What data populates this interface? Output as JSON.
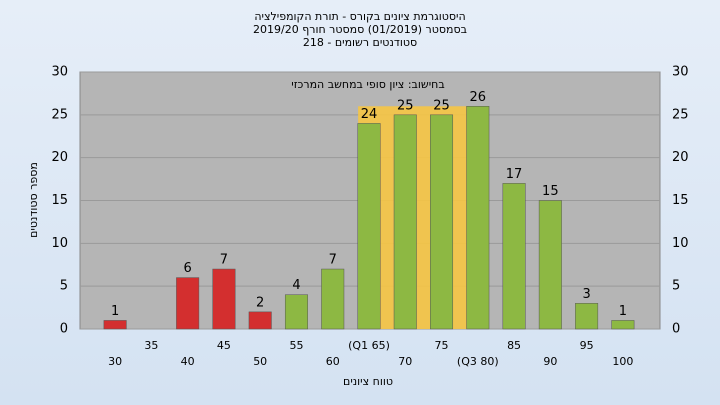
{
  "chart_data": {
    "type": "bar",
    "title": [
      "היסטוגרמת ציונים בקורס - תורת הקומפילציה",
      "בסמסטר  (01/2019)  סמסטר חורף 2019/20",
      "סטודנטים רשומים - 218"
    ],
    "subtitle": "בחישוב: ציון סופי במחשב המרכזי",
    "x_label": "טווח ציונים",
    "y_label": "מספר סטודנטים",
    "categories": [
      "30",
      "35",
      "40",
      "45",
      "50",
      "55",
      "60",
      "(Q1 65)",
      "70",
      "75",
      "(Q3 80)",
      "85",
      "90",
      "95",
      "100"
    ],
    "values": [
      1,
      null,
      6,
      7,
      2,
      4,
      7,
      24,
      25,
      25,
      26,
      17,
      15,
      3,
      1
    ],
    "colors": [
      "#d32f2f",
      "#d32f2f",
      "#d32f2f",
      "#d32f2f",
      "#d32f2f",
      "#8db843",
      "#8db843",
      "#8db843",
      "#8db843",
      "#8db843",
      "#8db843",
      "#8db843",
      "#8db843",
      "#8db843",
      "#8db843"
    ],
    "ylim": [
      0,
      30
    ],
    "yticks": [
      0,
      5,
      10,
      15,
      20,
      25,
      30
    ],
    "grid": true
  }
}
